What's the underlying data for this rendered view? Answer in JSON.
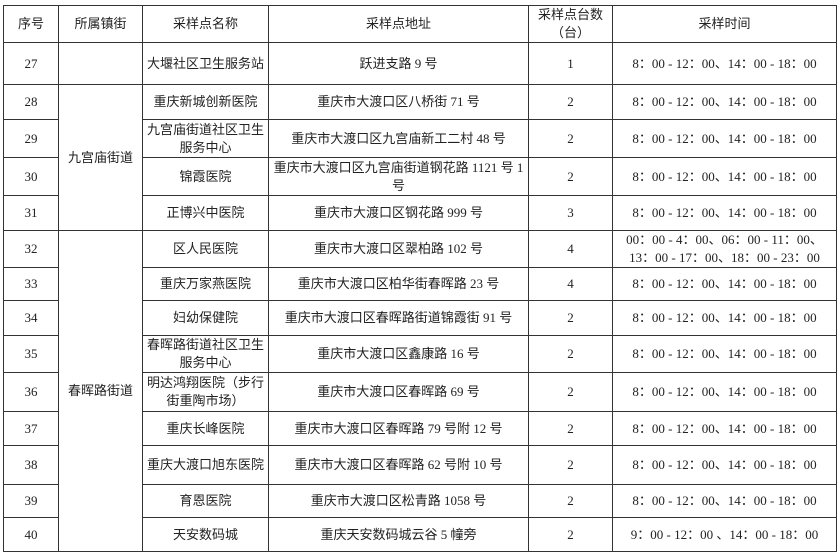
{
  "headers": [
    "序号",
    "所属镇街",
    "采样点名称",
    "采样点地址",
    "采样点台数（台）",
    "采样时间"
  ],
  "districts": {
    "jiugongmiao": "九宫庙街道",
    "chunhuilu": "春晖路街道"
  },
  "rows": [
    {
      "no": "27",
      "name": "大堰社区卫生服务站",
      "address": "跃进支路 9 号",
      "count": "1",
      "time": "8：00 - 12：00、14：00 - 18：00"
    },
    {
      "no": "28",
      "name": "重庆新城创新医院",
      "address": "重庆市大渡口区八桥街 71 号",
      "count": "2",
      "time": "8：00 - 12：00、14：00 - 18：00"
    },
    {
      "no": "29",
      "name": "九宫庙街道社区卫生服务中心",
      "address": "重庆市大渡口区九宫庙新工二村 48 号",
      "count": "2",
      "time": "8：00 - 12：00、14：00 - 18：00"
    },
    {
      "no": "30",
      "name": "锦霞医院",
      "address": "重庆市大渡口区九宫庙街道钢花路 1121 号 1 号",
      "count": "2",
      "time": "8：00 - 12：00、14：00 - 18：00"
    },
    {
      "no": "31",
      "name": "正博兴中医院",
      "address": "重庆市大渡口区钢花路 999 号",
      "count": "3",
      "time": "8：00 - 12：00、14：00 - 18：00"
    },
    {
      "no": "32",
      "name": "区人民医院",
      "address": "重庆市大渡口区翠柏路 102 号",
      "count": "4",
      "time": "00：00 - 4：00、06：00 - 11：00、13：00 - 17：00、18：00 - 23：00"
    },
    {
      "no": "33",
      "name": "重庆万家燕医院",
      "address": "重庆市大渡口区柏华街春晖路 23 号",
      "count": "4",
      "time": "8：00 - 12：00、14：00 - 18：00"
    },
    {
      "no": "34",
      "name": "妇幼保健院",
      "address": "重庆市大渡口区春晖路街道锦霞街 91 号",
      "count": "2",
      "time": "8：00 - 12：00、14：00 - 18：00"
    },
    {
      "no": "35",
      "name": "春晖路街道社区卫生服务中心",
      "address": "重庆市大渡口区鑫康路 16 号",
      "count": "2",
      "time": "8：00 - 12：00、14：00 - 18：00"
    },
    {
      "no": "36",
      "name": "明达鸿翔医院（步行街重陶市场）",
      "address": "重庆市大渡口区春晖路 69 号",
      "count": "2",
      "time": "8：00 - 12：00、14：00 - 18：00"
    },
    {
      "no": "37",
      "name": "重庆长峰医院",
      "address": "重庆市大渡口区春晖路 79 号附 12 号",
      "count": "2",
      "time": "8：00 - 12：00、14：00 - 18：00"
    },
    {
      "no": "38",
      "name": "重庆大渡口旭东医院",
      "address": "重庆市大渡口区春晖路 62 号附 10 号",
      "count": "2",
      "time": "8：00 - 12：00、14：00 - 18：00"
    },
    {
      "no": "39",
      "name": "育恩医院",
      "address": "重庆市大渡口区松青路 1058 号",
      "count": "2",
      "time": "8：00 - 12：00、14：00 - 18：00"
    },
    {
      "no": "40",
      "name": "天安数码城",
      "address": "重庆天安数码城云谷 5 幢旁",
      "count": "2",
      "time": "9：00 - 12：00 、14：00 - 18：00"
    }
  ]
}
